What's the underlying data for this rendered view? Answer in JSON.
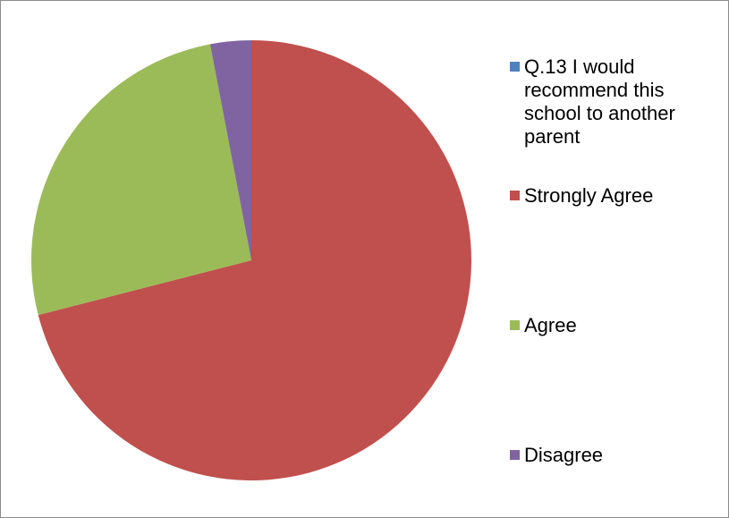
{
  "chart_data": {
    "type": "pie",
    "title": "",
    "legend_position": "right",
    "series": [
      {
        "name": "Q.13 I would recommend this school to another parent",
        "categories": [
          "Q.13 I would recommend this school to another parent",
          "Strongly Agree",
          "Agree",
          "Disagree"
        ],
        "values": [
          0,
          71,
          26,
          3
        ]
      }
    ],
    "categories": [
      "Q.13 I would recommend this school to another parent",
      "Strongly Agree",
      "Agree",
      "Disagree"
    ],
    "values": [
      0,
      71,
      26,
      3
    ],
    "colors": [
      "#4f81bd",
      "#c0504d",
      "#9bbb59",
      "#8064a2"
    ],
    "start_angle": "12 o'clock",
    "direction": "clockwise"
  }
}
